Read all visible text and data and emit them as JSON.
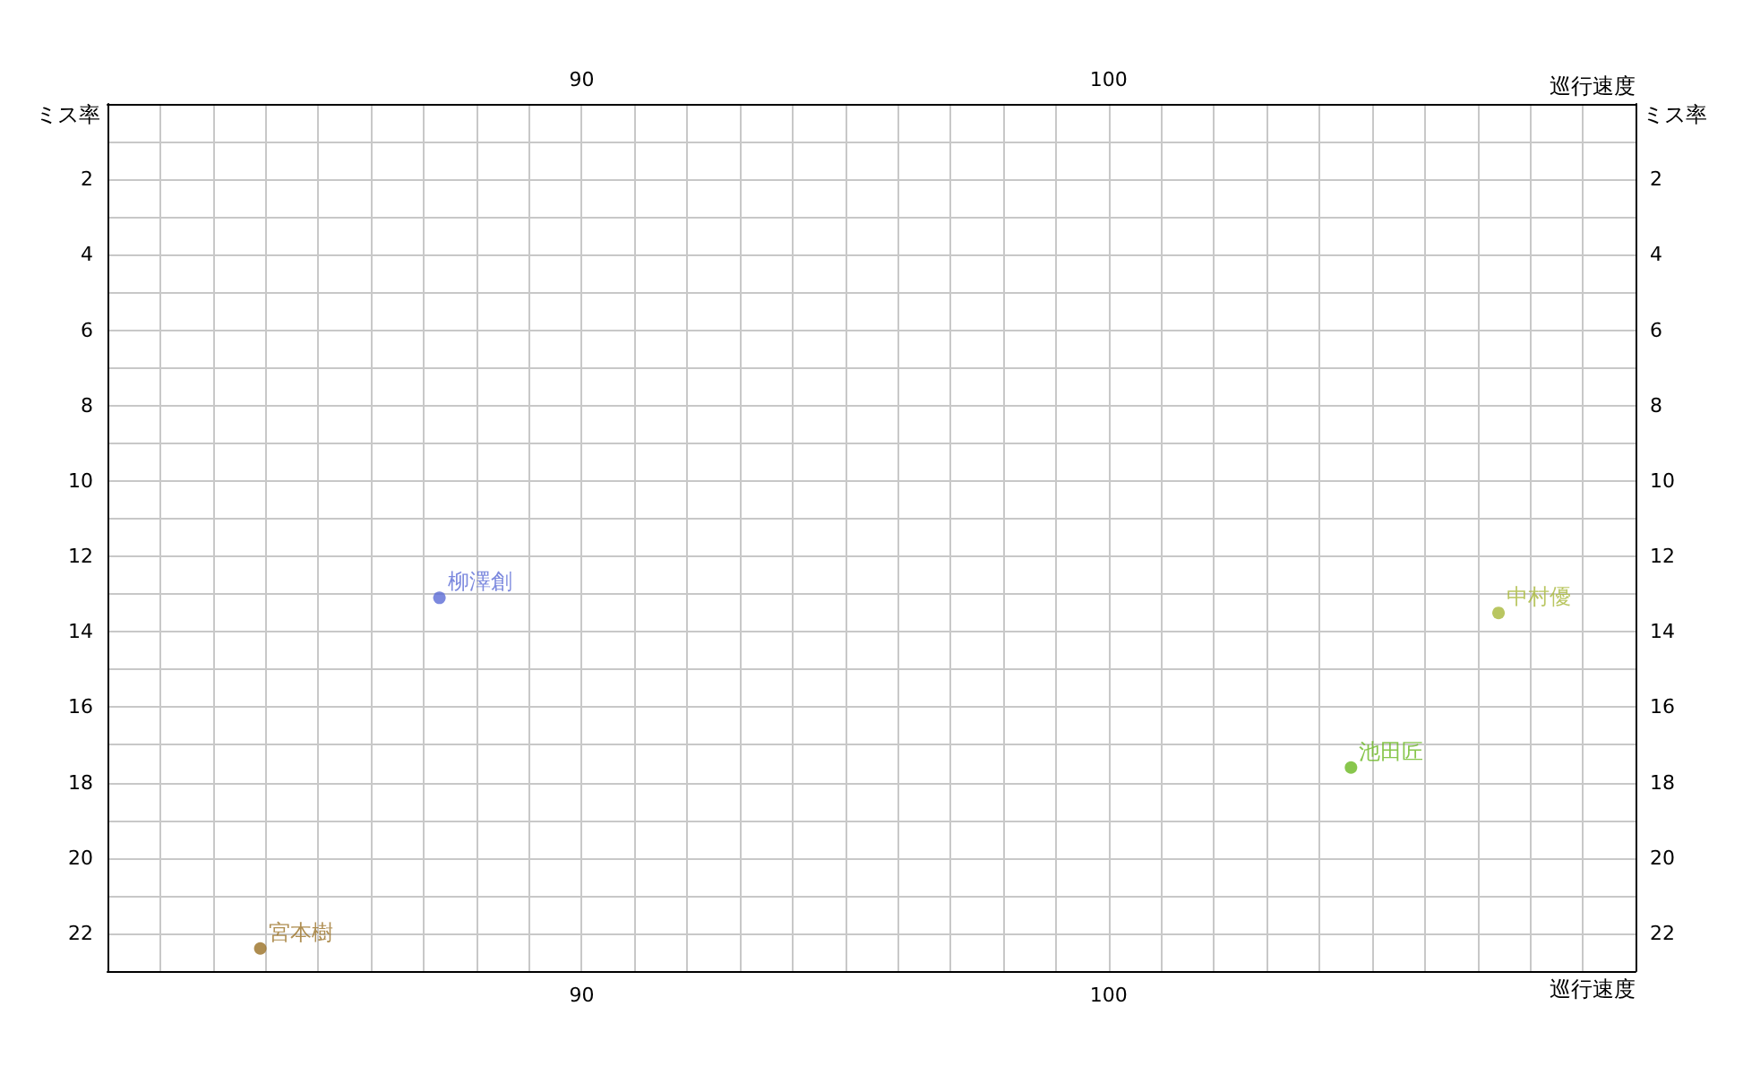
{
  "chart_data": {
    "type": "scatter",
    "xlabel": "巡行速度",
    "x2label": "巡行速度",
    "ylabel": "ミス率",
    "y2label": "ミス率",
    "xlim": [
      81,
      110
    ],
    "x2lim": [
      81,
      110
    ],
    "ylim": [
      23,
      0
    ],
    "y2lim": [
      23,
      0
    ],
    "xticks": [
      {
        "value": 82,
        "label": null
      },
      {
        "value": 83,
        "label": null
      },
      {
        "value": 84,
        "label": null
      },
      {
        "value": 85,
        "label": null
      },
      {
        "value": 86,
        "label": null
      },
      {
        "value": 87,
        "label": null
      },
      {
        "value": 88,
        "label": null
      },
      {
        "value": 89,
        "label": null
      },
      90,
      {
        "value": 91,
        "label": null
      },
      {
        "value": 92,
        "label": null
      },
      {
        "value": 93,
        "label": null
      },
      {
        "value": 94,
        "label": null
      },
      {
        "value": 95,
        "label": null
      },
      {
        "value": 96,
        "label": null
      },
      {
        "value": 97,
        "label": null
      },
      {
        "value": 98,
        "label": null
      },
      {
        "value": 99,
        "label": null
      },
      100,
      {
        "value": 101,
        "label": null
      },
      {
        "value": 102,
        "label": null
      },
      {
        "value": 103,
        "label": null
      },
      {
        "value": 104,
        "label": null
      },
      {
        "value": 105,
        "label": null
      },
      {
        "value": 106,
        "label": null
      },
      {
        "value": 107,
        "label": null
      },
      {
        "value": 108,
        "label": null
      },
      {
        "value": 109,
        "label": null
      }
    ],
    "x2ticks": [
      {
        "value": 82,
        "label": null
      },
      {
        "value": 83,
        "label": null
      },
      {
        "value": 84,
        "label": null
      },
      {
        "value": 85,
        "label": null
      },
      {
        "value": 86,
        "label": null
      },
      {
        "value": 87,
        "label": null
      },
      {
        "value": 88,
        "label": null
      },
      {
        "value": 89,
        "label": null
      },
      90,
      {
        "value": 91,
        "label": null
      },
      {
        "value": 92,
        "label": null
      },
      {
        "value": 93,
        "label": null
      },
      {
        "value": 94,
        "label": null
      },
      {
        "value": 95,
        "label": null
      },
      {
        "value": 96,
        "label": null
      },
      {
        "value": 97,
        "label": null
      },
      {
        "value": 98,
        "label": null
      },
      {
        "value": 99,
        "label": null
      },
      100,
      {
        "value": 101,
        "label": null
      },
      {
        "value": 102,
        "label": null
      },
      {
        "value": 103,
        "label": null
      },
      {
        "value": 104,
        "label": null
      },
      {
        "value": 105,
        "label": null
      },
      {
        "value": 106,
        "label": null
      },
      {
        "value": 107,
        "label": null
      },
      {
        "value": 108,
        "label": null
      },
      {
        "value": 109,
        "label": null
      }
    ],
    "yticks": [
      {
        "value": 1,
        "label": null
      },
      2,
      {
        "value": 3,
        "label": null
      },
      4,
      {
        "value": 5,
        "label": null
      },
      6,
      {
        "value": 7,
        "label": null
      },
      8,
      {
        "value": 9,
        "label": null
      },
      10,
      {
        "value": 11,
        "label": null
      },
      12,
      {
        "value": 13,
        "label": null
      },
      14,
      {
        "value": 15,
        "label": null
      },
      16,
      {
        "value": 17,
        "label": null
      },
      18,
      {
        "value": 19,
        "label": null
      },
      20,
      {
        "value": 21,
        "label": null
      },
      22
    ],
    "y2ticks": [
      {
        "value": 1,
        "label": null
      },
      2,
      {
        "value": 3,
        "label": null
      },
      4,
      {
        "value": 5,
        "label": null
      },
      6,
      {
        "value": 7,
        "label": null
      },
      8,
      {
        "value": 9,
        "label": null
      },
      10,
      {
        "value": 11,
        "label": null
      },
      12,
      {
        "value": 13,
        "label": null
      },
      14,
      {
        "value": 15,
        "label": null
      },
      16,
      {
        "value": 17,
        "label": null
      },
      18,
      {
        "value": 19,
        "label": null
      },
      20,
      {
        "value": 21,
        "label": null
      },
      22
    ],
    "grid": true,
    "legend": false,
    "marker": "circle",
    "series": [
      {
        "name": "柳澤創",
        "color": "#5b6bd6",
        "x": [
          87.3
        ],
        "values": [
          13.1
        ]
      },
      {
        "name": "中村優",
        "color": "#a8b83a",
        "x": [
          107.4
        ],
        "values": [
          13.5
        ]
      },
      {
        "name": "池田匠",
        "color": "#6ab820",
        "x": [
          104.6
        ],
        "values": [
          17.6
        ]
      },
      {
        "name": "宮本樹",
        "color": "#9a7024",
        "x": [
          83.9
        ],
        "values": [
          22.4
        ]
      }
    ]
  }
}
